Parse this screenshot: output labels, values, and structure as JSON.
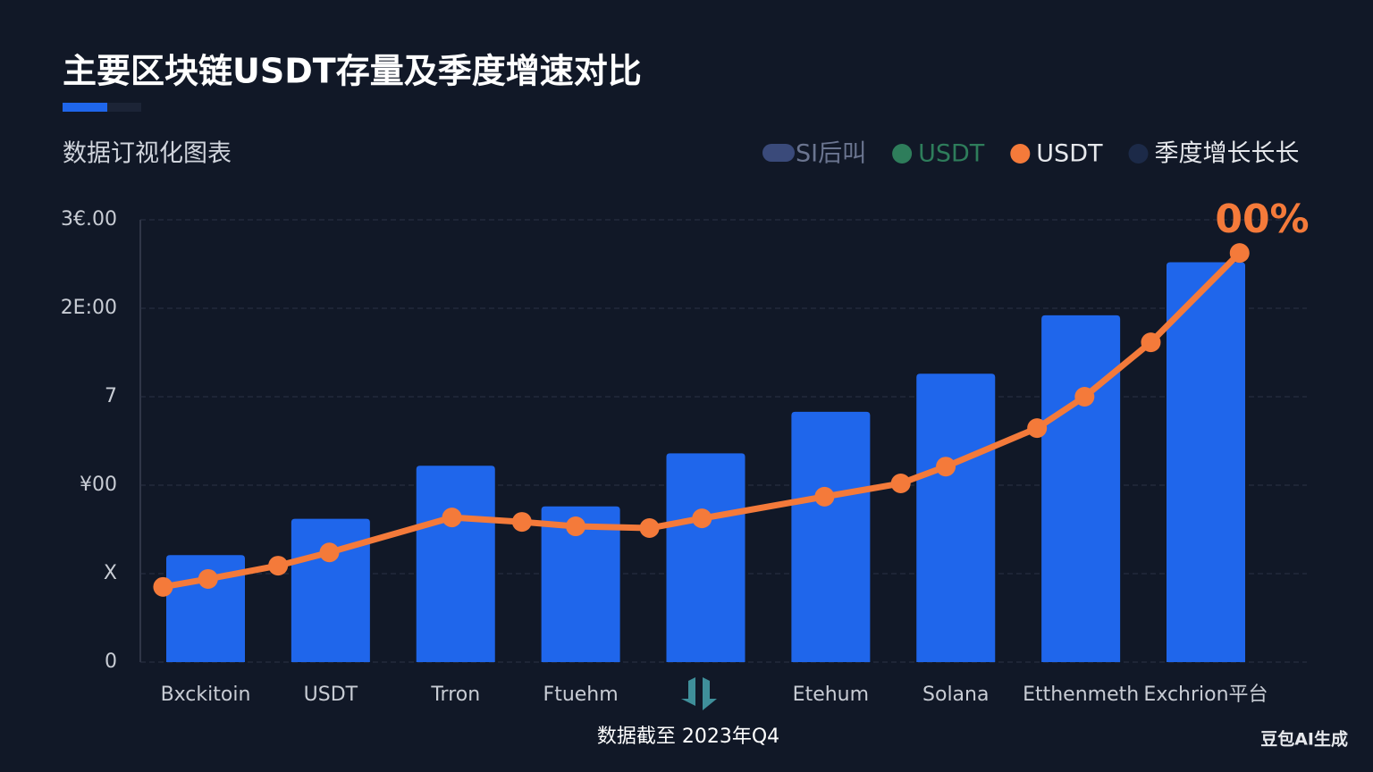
{
  "title": "主要区块链USDT存量及季度增速对比",
  "subtitle": "数据订视化图表",
  "legend": [
    {
      "name": "SI后叫",
      "color": "#3a4a7a"
    },
    {
      "name": "USDT",
      "color": "#2e7d5b"
    },
    {
      "name": "USDT",
      "color": "#f47a3a"
    },
    {
      "name": "季度增长长长",
      "color": "#1c2a48"
    }
  ],
  "chart_data": {
    "type": "bar",
    "categories": [
      "Bxckitoin",
      "USDT",
      "Trron",
      "Ftuehm",
      null,
      "Etehum",
      "Solana",
      "Etthenmeth",
      "Exchrion平台"
    ],
    "ylim": [
      0,
      500
    ],
    "yticks": [
      0,
      {
        "value": 100,
        "label": "X"
      },
      {
        "value": 200,
        "label": "¥00"
      },
      {
        "value": 300,
        "label": "7"
      },
      {
        "value": 400,
        "label": "2E:00"
      },
      {
        "value": 500,
        "label": "3€.00"
      }
    ],
    "y2lim": [
      0,
      100
    ],
    "grid": true,
    "series": [
      {
        "name": "SI后叫",
        "color": "#1f66eb",
        "values": [
          121,
          162,
          222,
          176,
          236,
          283,
          326,
          392,
          452
        ]
      },
      {
        "name": "USDT",
        "color": "#f47a3a",
        "axis": "y2",
        "type": "line",
        "x": [
          -0.34,
          0.02,
          0.58,
          0.99,
          1.97,
          2.53,
          2.96,
          3.55,
          3.97,
          4.95,
          5.56,
          5.92,
          6.65,
          7.03,
          7.56,
          8.27
        ],
        "values": [
          17.0,
          18.8,
          21.8,
          24.8,
          32.7,
          31.7,
          30.7,
          30.3,
          32.5,
          37.4,
          40.4,
          44.2,
          52.9,
          60.0,
          72.3,
          92.5
        ]
      }
    ],
    "annotation": "00%",
    "footnote": "数据截至 2023年Q4"
  },
  "watermark": "豆包AI生成"
}
